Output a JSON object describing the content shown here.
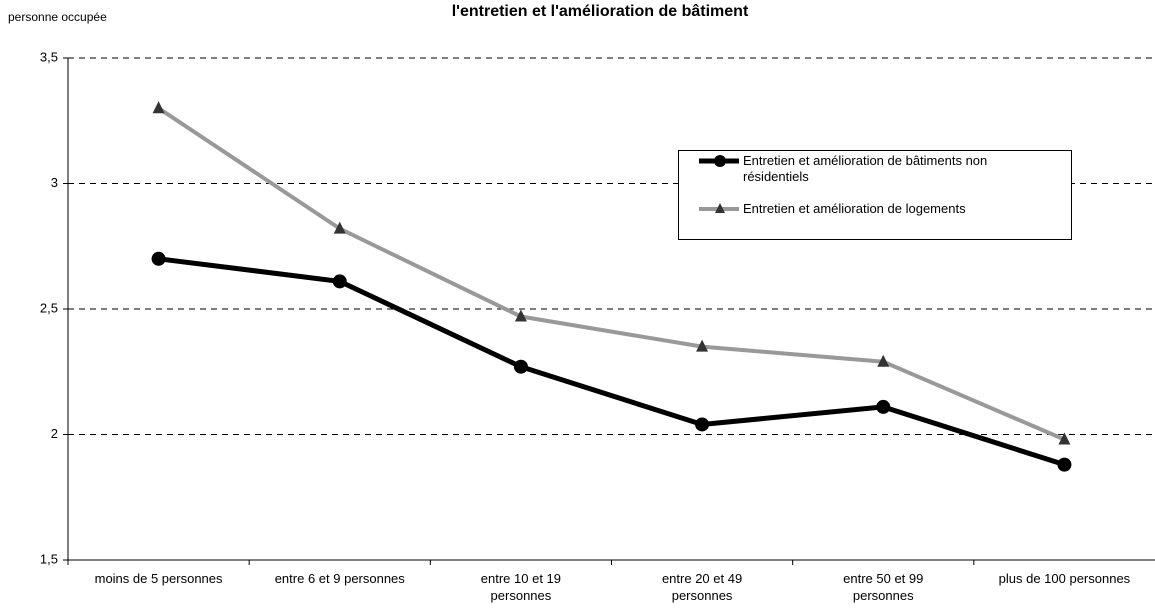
{
  "chart_data": {
    "type": "line",
    "title": "l'entretien et l'amélioration de bâtiment",
    "y_label": "personne occupée",
    "categories": [
      "moins de 5 personnes",
      "entre 6 et 9 personnes",
      "entre 10 et 19\npersonnes",
      "entre 20 et 49\npersonnes",
      "entre 50 et 99\npersonnes",
      "plus de 100 personnes"
    ],
    "series": [
      {
        "name": "Entretien et amélioration de bâtiments non résidentiels",
        "color": "#000000",
        "marker": "circle",
        "values": [
          2.7,
          2.61,
          2.27,
          2.04,
          2.11,
          1.88
        ]
      },
      {
        "name": "Entretien et amélioration de logements",
        "color": "#999999",
        "marker": "triangle",
        "values": [
          3.3,
          2.82,
          2.47,
          2.35,
          2.29,
          1.98
        ]
      }
    ],
    "ylim": [
      1.5,
      3.5
    ],
    "yticks": [
      {
        "value": 1.5,
        "label": "1,5"
      },
      2,
      {
        "value": 2.5,
        "label": "2,5"
      },
      3,
      {
        "value": 3.5,
        "label": "3,5"
      }
    ],
    "grid": true,
    "legend": "upper right"
  }
}
